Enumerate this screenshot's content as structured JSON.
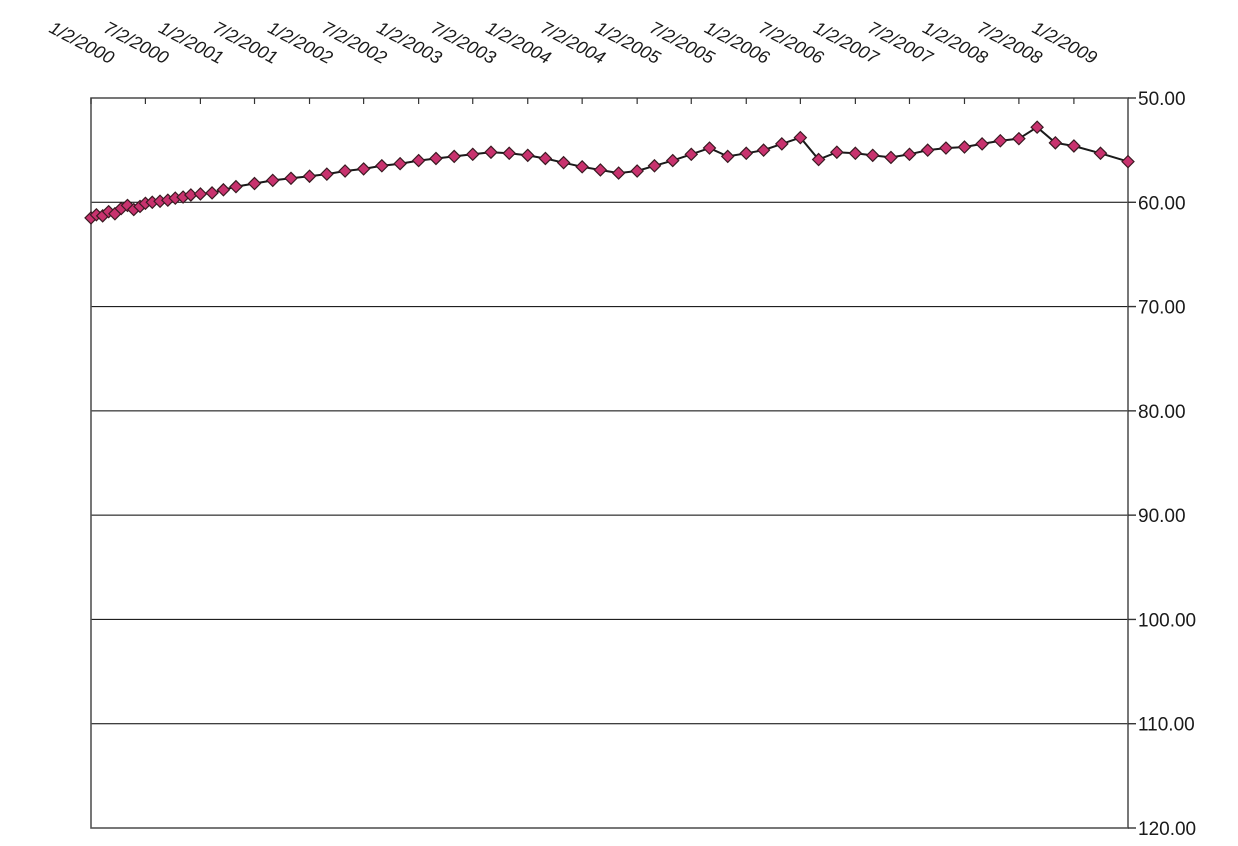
{
  "chart_data": {
    "type": "line",
    "title": "",
    "xlabel": "",
    "ylabel": "",
    "y_axis_position": "right",
    "y_reversed": true,
    "ylim": [
      50,
      120
    ],
    "y_ticks": [
      "50.00",
      "60.00",
      "70.00",
      "80.00",
      "90.00",
      "100.00",
      "110.00",
      "120.00"
    ],
    "y_tick_values": [
      50,
      60,
      70,
      80,
      90,
      100,
      110,
      120
    ],
    "x_range": [
      "2000-01-02",
      "2009-07-02"
    ],
    "x_ticks": [
      "1/2/2000",
      "7/2/2000",
      "1/2/2001",
      "7/2/2001",
      "1/2/2002",
      "7/2/2002",
      "1/2/2003",
      "7/2/2003",
      "1/2/2004",
      "7/2/2004",
      "1/2/2005",
      "7/2/2005",
      "1/2/2006",
      "7/2/2006",
      "1/2/2007",
      "7/2/2007",
      "1/2/2008",
      "7/2/2008",
      "1/2/2009"
    ],
    "x_tick_dates": [
      "2000-01-02",
      "2000-07-02",
      "2001-01-02",
      "2001-07-02",
      "2002-01-02",
      "2002-07-02",
      "2003-01-02",
      "2003-07-02",
      "2004-01-02",
      "2004-07-02",
      "2005-01-02",
      "2005-07-02",
      "2006-01-02",
      "2006-07-02",
      "2007-01-02",
      "2007-07-02",
      "2008-01-02",
      "2008-07-02",
      "2009-01-02"
    ],
    "grid": true,
    "marker": "diamond",
    "colors": {
      "marker_fill": "#c8326e",
      "marker_edge": "#3a1a22",
      "line": "#1a1a1a",
      "grid": "#000000"
    },
    "series": [
      {
        "x": [
          "2000-01-02",
          "2000-01-20",
          "2000-02-10",
          "2000-03-01",
          "2000-03-22",
          "2000-04-12",
          "2000-05-03",
          "2000-05-24",
          "2000-06-14",
          "2000-07-02",
          "2000-07-25",
          "2000-08-20",
          "2000-09-15",
          "2000-10-10",
          "2000-11-05",
          "2000-12-01",
          "2001-01-02",
          "2001-02-10",
          "2001-03-20",
          "2001-05-01",
          "2001-07-02",
          "2001-09-01",
          "2001-11-01",
          "2002-01-02",
          "2002-03-01",
          "2002-05-01",
          "2002-07-02",
          "2002-09-01",
          "2002-11-01",
          "2003-01-02",
          "2003-03-01",
          "2003-05-01",
          "2003-07-02",
          "2003-09-01",
          "2003-11-01",
          "2004-01-02",
          "2004-03-01",
          "2004-05-01",
          "2004-07-02",
          "2004-09-01",
          "2004-11-01",
          "2005-01-02",
          "2005-03-01",
          "2005-05-01",
          "2005-07-02",
          "2005-09-01",
          "2005-11-01",
          "2006-01-02",
          "2006-03-01",
          "2006-05-01",
          "2006-07-02",
          "2006-09-01",
          "2006-11-01",
          "2007-01-02",
          "2007-03-01",
          "2007-05-01",
          "2007-07-02",
          "2007-09-01",
          "2007-11-01",
          "2008-01-02",
          "2008-03-01",
          "2008-05-01",
          "2008-07-02",
          "2008-09-01",
          "2008-11-01",
          "2009-01-02",
          "2009-04-01",
          "2009-07-02"
        ],
        "y": [
          61.5,
          61.2,
          61.3,
          60.9,
          61.1,
          60.6,
          60.3,
          60.7,
          60.4,
          60.1,
          60.0,
          59.9,
          59.8,
          59.6,
          59.5,
          59.3,
          59.2,
          59.1,
          58.8,
          58.5,
          58.2,
          57.9,
          57.7,
          57.5,
          57.3,
          57.0,
          56.8,
          56.5,
          56.3,
          56.0,
          55.8,
          55.6,
          55.4,
          55.2,
          55.3,
          55.5,
          55.8,
          56.2,
          56.6,
          56.9,
          57.2,
          57.0,
          56.5,
          56.0,
          55.4,
          54.8,
          55.6,
          55.3,
          55.0,
          54.4,
          53.8,
          55.9,
          55.2,
          55.3,
          55.5,
          55.7,
          55.4,
          55.0,
          54.8,
          54.7,
          54.4,
          54.1,
          53.9,
          52.8,
          54.3,
          54.6,
          55.3,
          56.1
        ]
      }
    ]
  }
}
